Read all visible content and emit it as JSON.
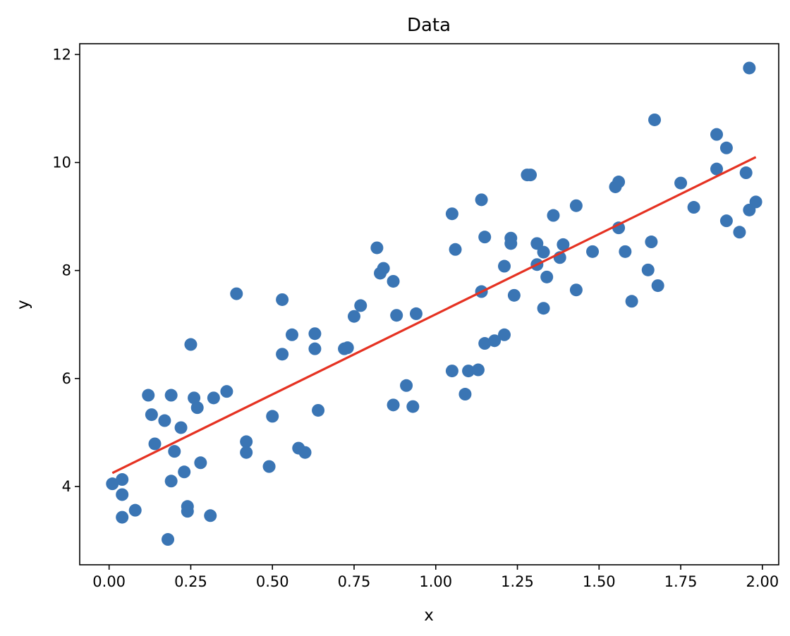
{
  "chart_data": {
    "type": "scatter",
    "title": "Data",
    "xlabel": "x",
    "ylabel": "y",
    "xlim": [
      -0.09,
      2.05
    ],
    "ylim": [
      2.55,
      12.2
    ],
    "xticks": [
      0.0,
      0.25,
      0.5,
      0.75,
      1.0,
      1.25,
      1.5,
      1.75,
      2.0
    ],
    "xtick_labels": [
      "0.00",
      "0.25",
      "0.50",
      "0.75",
      "1.00",
      "1.25",
      "1.50",
      "1.75",
      "2.00"
    ],
    "yticks": [
      4,
      6,
      8,
      10,
      12
    ],
    "ytick_labels": [
      "4",
      "6",
      "8",
      "10",
      "12"
    ],
    "grid": false,
    "colors": {
      "points": "#3a75b4",
      "fit_line": "#e53222",
      "axes": "#000000"
    },
    "series": [
      {
        "type": "scatter",
        "x": [
          0.01,
          0.04,
          0.04,
          0.04,
          0.08,
          0.12,
          0.13,
          0.14,
          0.17,
          0.18,
          0.19,
          0.19,
          0.2,
          0.22,
          0.23,
          0.24,
          0.24,
          0.25,
          0.26,
          0.27,
          0.28,
          0.31,
          0.32,
          0.36,
          0.39,
          0.42,
          0.42,
          0.49,
          0.5,
          0.53,
          0.53,
          0.56,
          0.58,
          0.6,
          0.63,
          0.63,
          0.64,
          0.72,
          0.73,
          0.75,
          0.77,
          0.82,
          0.83,
          0.84,
          0.87,
          0.87,
          0.88,
          0.91,
          0.93,
          0.94,
          1.05,
          1.05,
          1.06,
          1.09,
          1.1,
          1.13,
          1.14,
          1.14,
          1.15,
          1.15,
          1.18,
          1.21,
          1.21,
          1.23,
          1.23,
          1.24,
          1.28,
          1.29,
          1.31,
          1.31,
          1.33,
          1.33,
          1.34,
          1.36,
          1.38,
          1.39,
          1.43,
          1.43,
          1.48,
          1.55,
          1.56,
          1.56,
          1.58,
          1.6,
          1.65,
          1.66,
          1.67,
          1.68,
          1.75,
          1.79,
          1.86,
          1.86,
          1.89,
          1.89,
          1.93,
          1.95,
          1.96,
          1.96,
          1.98
        ],
        "y": [
          4.05,
          4.13,
          3.85,
          3.43,
          3.56,
          5.69,
          5.33,
          4.79,
          5.22,
          3.02,
          4.1,
          5.69,
          4.65,
          5.09,
          4.27,
          3.63,
          3.54,
          6.63,
          5.64,
          5.46,
          4.44,
          3.46,
          5.64,
          5.76,
          7.57,
          4.83,
          4.63,
          4.37,
          5.3,
          6.45,
          7.46,
          6.81,
          4.71,
          4.63,
          6.55,
          6.83,
          5.41,
          6.55,
          6.57,
          7.15,
          7.35,
          8.42,
          7.95,
          8.04,
          7.8,
          5.51,
          7.17,
          5.87,
          5.48,
          7.2,
          9.05,
          6.14,
          8.39,
          5.71,
          6.14,
          6.16,
          7.61,
          9.31,
          6.65,
          8.62,
          6.7,
          8.08,
          6.81,
          8.6,
          8.5,
          7.54,
          9.77,
          9.77,
          8.5,
          8.11,
          8.34,
          7.3,
          7.88,
          9.02,
          8.24,
          8.48,
          9.2,
          7.64,
          8.35,
          9.55,
          9.64,
          8.79,
          8.35,
          7.43,
          8.01,
          8.53,
          10.79,
          7.72,
          9.62,
          9.17,
          10.52,
          9.88,
          10.27,
          8.92,
          8.71,
          9.81,
          9.12,
          11.75,
          9.27
        ]
      },
      {
        "type": "line",
        "x": [
          0.01,
          1.98
        ],
        "y": [
          4.25,
          10.1
        ]
      }
    ]
  }
}
